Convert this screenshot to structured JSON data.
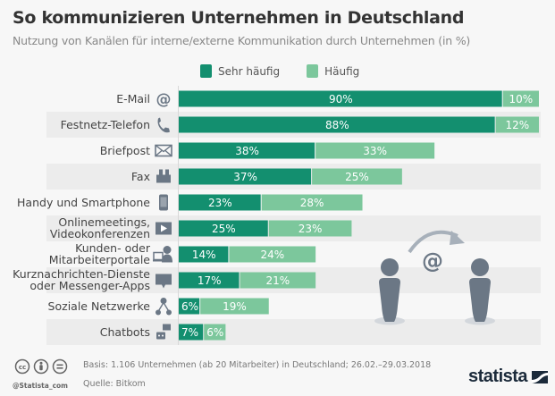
{
  "header": {
    "title": "So kommunizieren Unternehmen in Deutschland",
    "subtitle": "Nutzung von Kanälen für interne/externe Kommunikation durch Unternehmen (in %)"
  },
  "colors": {
    "sehr_haeufig": "#138f6f",
    "haeufig": "#7cc79c",
    "band": "#ececec",
    "icon": "#6b7785",
    "label": "#444444",
    "background": "#f7f7f7"
  },
  "chart_data": {
    "type": "bar",
    "orientation": "horizontal",
    "stacked": true,
    "title": "So kommunizieren Unternehmen in Deutschland",
    "subtitle": "Nutzung von Kanälen für interne/externe Kommunikation durch Unternehmen (in %)",
    "xlabel": "",
    "ylabel": "",
    "xlim": [
      0,
      100
    ],
    "grid": false,
    "legend_position": "top-center",
    "categories": [
      "E-Mail",
      "Festnetz-Telefon",
      "Briefpost",
      "Fax",
      "Handy und Smartphone",
      "Onlinemeetings, Videokonferenzen",
      "Kunden- oder Mitarbeiterportale",
      "Kurznachrichten-Dienste oder Messenger-Apps",
      "Soziale Netzwerke",
      "Chatbots"
    ],
    "category_lines": [
      [
        "E-Mail"
      ],
      [
        "Festnetz-Telefon"
      ],
      [
        "Briefpost"
      ],
      [
        "Fax"
      ],
      [
        "Handy und Smartphone"
      ],
      [
        "Onlinemeetings,",
        "Videokonferenzen"
      ],
      [
        "Kunden- oder",
        "Mitarbeiterportale"
      ],
      [
        "Kurznachrichten-Dienste",
        "oder Messenger-Apps"
      ],
      [
        "Soziale Netzwerke"
      ],
      [
        "Chatbots"
      ]
    ],
    "category_icons": [
      "at-sign-icon",
      "phone-icon",
      "envelope-icon",
      "fax-icon",
      "smartphone-icon",
      "video-play-icon",
      "portal-user-icon",
      "chat-bubble-icon",
      "social-network-icon",
      "chatbot-icon"
    ],
    "series": [
      {
        "name": "Sehr häufig",
        "values": [
          90,
          88,
          38,
          37,
          23,
          25,
          14,
          17,
          6,
          7
        ]
      },
      {
        "name": "Häufig",
        "values": [
          10,
          12,
          33,
          25,
          28,
          23,
          24,
          21,
          19,
          6
        ]
      }
    ],
    "value_suffix": "%"
  },
  "illustration": {
    "icon": "email-exchange-illustration",
    "symbol": "@"
  },
  "footer": {
    "basis": "Basis: 1.106 Unternehmen (ab 20 Mitarbeiter) in Deutschland; 26.02.–29.03.2018",
    "source": "Quelle: Bitkom",
    "handle": "@Statista_com",
    "brand": "statista",
    "license_icons": [
      "cc-icon",
      "by-icon",
      "nd-icon"
    ]
  }
}
